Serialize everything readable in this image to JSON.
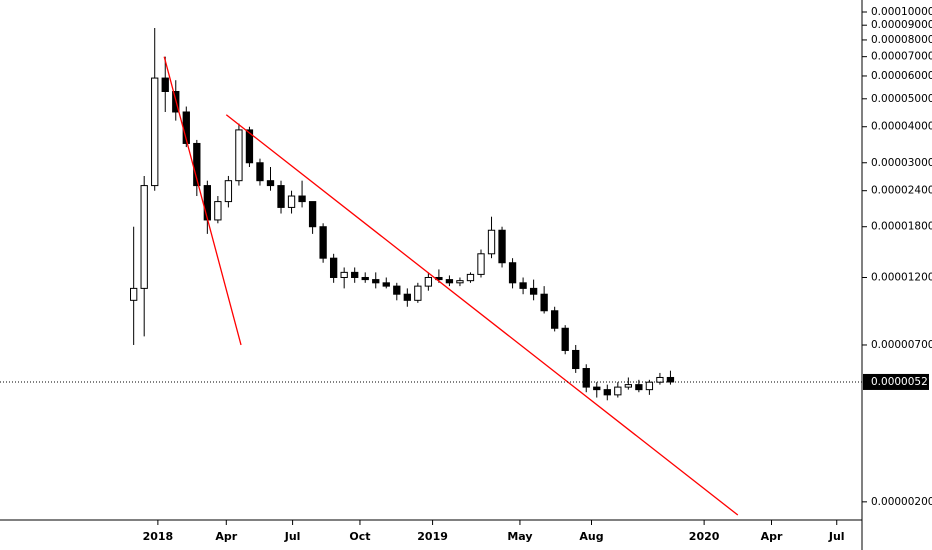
{
  "chart_data": {
    "type": "candlestick",
    "log_scale": true,
    "up_color": "#ffffff",
    "down_color": "#000000",
    "border_color": "#000000",
    "trendline_color": "#ff0000",
    "categories": [
      null,
      null,
      null,
      null,
      null,
      null,
      null,
      null,
      null,
      null,
      null,
      null,
      null,
      null,
      null,
      null,
      null,
      null,
      null,
      null,
      null,
      null,
      null,
      null,
      null,
      null,
      null,
      null,
      null,
      null,
      null,
      null,
      null,
      null,
      null,
      null,
      null,
      null,
      null,
      null,
      null,
      null,
      null,
      null,
      null,
      null,
      null,
      null,
      null,
      null,
      null,
      null
    ],
    "open": [
      1e-05,
      1.1e-05,
      2.5e-05,
      5.9e-05,
      5.3e-05,
      4.5e-05,
      3.5e-05,
      2.5e-05,
      1.9e-05,
      2.2e-05,
      2.6e-05,
      3.9e-05,
      3e-05,
      2.6e-05,
      2.5e-05,
      2.1e-05,
      2.3e-05,
      2.2e-05,
      1.8e-05,
      1.4e-05,
      1.2e-05,
      1.25e-05,
      1.2e-05,
      1.18e-05,
      1.15e-05,
      1.12e-05,
      1.05e-05,
      1e-05,
      1.12e-05,
      1.2e-05,
      1.18e-05,
      1.15e-05,
      1.17e-05,
      1.23e-05,
      1.45e-05,
      1.75e-05,
      1.35e-05,
      1.15e-05,
      1.1e-05,
      1.05e-05,
      9.2e-06,
      8e-06,
      6.7e-06,
      5.8e-06,
      5e-06,
      4.9e-06,
      4.7e-06,
      5e-06,
      5.1e-06,
      4.9e-06,
      5.2e-06,
      5.4e-06
    ],
    "high": [
      1.8e-05,
      2.7e-05,
      8.8e-05,
      7e-05,
      5.8e-05,
      4.7e-05,
      3.6e-05,
      2.6e-05,
      2.3e-05,
      2.7e-05,
      4.1e-05,
      4e-05,
      3.1e-05,
      2.9e-05,
      2.6e-05,
      2.4e-05,
      2.6e-05,
      2.2e-05,
      1.85e-05,
      1.45e-05,
      1.3e-05,
      1.3e-05,
      1.25e-05,
      1.25e-05,
      1.2e-05,
      1.15e-05,
      1.1e-05,
      1.15e-05,
      1.25e-05,
      1.28e-05,
      1.22e-05,
      1.2e-05,
      1.25e-05,
      1.5e-05,
      1.95e-05,
      1.8e-05,
      1.4e-05,
      1.2e-05,
      1.18e-05,
      1.12e-05,
      9.5e-06,
      8.2e-06,
      7e-06,
      6e-06,
      5.2e-06,
      5.1e-06,
      5.2e-06,
      5.4e-06,
      5.3e-06,
      5.3e-06,
      5.6e-06,
      5.7e-06
    ],
    "low": [
      7e-06,
      7.5e-06,
      2.4e-05,
      4.5e-05,
      4.2e-05,
      3.4e-05,
      2.3e-05,
      1.7e-05,
      1.85e-05,
      2.1e-05,
      2.5e-05,
      2.9e-05,
      2.5e-05,
      2.4e-05,
      2e-05,
      2e-05,
      2.1e-05,
      1.7e-05,
      1.35e-05,
      1.15e-05,
      1.1e-05,
      1.15e-05,
      1.15e-05,
      1.1e-05,
      1.1e-05,
      1e-05,
      9.5e-06,
      9.8e-06,
      1.08e-05,
      1.15e-05,
      1.12e-05,
      1.12e-05,
      1.15e-05,
      1.2e-05,
      1.4e-05,
      1.3e-05,
      1.1e-05,
      1.05e-05,
      1e-05,
      9e-06,
      7.8e-06,
      6.5e-06,
      5.6e-06,
      4.8e-06,
      4.6e-06,
      4.5e-06,
      4.6e-06,
      4.9e-06,
      4.8e-06,
      4.7e-06,
      5.1e-06,
      5.1e-06
    ],
    "close": [
      1.1e-05,
      2.5e-05,
      5.9e-05,
      5.3e-05,
      4.5e-05,
      3.5e-05,
      2.5e-05,
      1.9e-05,
      2.2e-05,
      2.6e-05,
      3.9e-05,
      3e-05,
      2.6e-05,
      2.5e-05,
      2.1e-05,
      2.3e-05,
      2.2e-05,
      1.8e-05,
      1.4e-05,
      1.2e-05,
      1.25e-05,
      1.2e-05,
      1.18e-05,
      1.15e-05,
      1.12e-05,
      1.05e-05,
      1e-05,
      1.12e-05,
      1.2e-05,
      1.18e-05,
      1.15e-05,
      1.17e-05,
      1.23e-05,
      1.45e-05,
      1.75e-05,
      1.35e-05,
      1.15e-05,
      1.1e-05,
      1.05e-05,
      9.2e-06,
      8e-06,
      6.7e-06,
      5.8e-06,
      5e-06,
      4.9e-06,
      4.7e-06,
      5e-06,
      5.1e-06,
      4.9e-06,
      5.2e-06,
      5.4e-06,
      5.21e-06
    ],
    "xlim": [
      -12.7,
      69.2
    ],
    "xticks": [
      {
        "value": 2.3,
        "label": "2018"
      },
      {
        "value": 8.8,
        "label": "Apr"
      },
      {
        "value": 15.1,
        "label": "Jul"
      },
      {
        "value": 21.5,
        "label": "Oct"
      },
      {
        "value": 28.4,
        "label": "2019"
      },
      {
        "value": 36.7,
        "label": "May"
      },
      {
        "value": 43.5,
        "label": "Aug"
      },
      {
        "value": 54.2,
        "label": "2020"
      },
      {
        "value": 60.6,
        "label": "Apr"
      },
      {
        "value": 66.8,
        "label": "Jul"
      }
    ],
    "ylim": [
      1.73e-06,
      0.00011006
    ],
    "yticks": [
      {
        "value": 0.0001,
        "label": "0.00010000"
      },
      {
        "value": 9e-05,
        "label": "0.00009000"
      },
      {
        "value": 8e-05,
        "label": "0.00008000"
      },
      {
        "value": 7e-05,
        "label": "0.00007000"
      },
      {
        "value": 6e-05,
        "label": "0.00006000"
      },
      {
        "value": 5e-05,
        "label": "0.00005000"
      },
      {
        "value": 4e-05,
        "label": "0.00004000"
      },
      {
        "value": 3e-05,
        "label": "0.00003000"
      },
      {
        "value": 2.4e-05,
        "label": "0.00002400"
      },
      {
        "value": 1.8e-05,
        "label": "0.00001800"
      },
      {
        "value": 1.2e-05,
        "label": "0.00001200"
      },
      {
        "value": 7e-06,
        "label": "0.00000700"
      },
      {
        "value": 2e-06,
        "label": "0.00000200"
      }
    ],
    "last_price": {
      "value": 5.21e-06,
      "label": "0.00000521"
    },
    "trendlines": [
      {
        "x": [
          2.9,
          10.2
        ],
        "y": [
          7e-05,
          7e-06
        ]
      },
      {
        "x": [
          8.8,
          57.4
        ],
        "y": [
          4.4e-05,
          1.8e-06
        ]
      }
    ]
  }
}
